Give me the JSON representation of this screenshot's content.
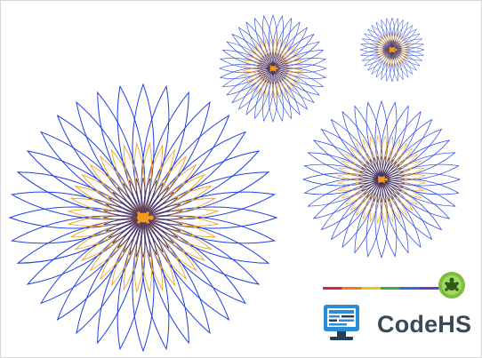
{
  "app": {
    "brand_name": "CodeHS"
  },
  "colors": {
    "outer_petal": "#1f3fe6",
    "inner_petal": "#f0a52a",
    "center_dark": "#3a2a6a",
    "turtle_fill": "#f29a1a",
    "background": "#ffffff",
    "border": "#d6d6d6",
    "logo_text": "#3a4a55",
    "logo_blue": "#2a8bd6",
    "logo_dark": "#21435e",
    "badge_green": "#7dbf3a"
  },
  "icons": {
    "turtle": "turtle-icon",
    "monitor": "monitor-icon",
    "badge": "turtle-badge-icon"
  },
  "rainbow_bar_colors": [
    "#d8263c",
    "#f07a24",
    "#f3c21b",
    "#3cab4b",
    "#2b6fd9",
    "#6a3fb5"
  ]
}
